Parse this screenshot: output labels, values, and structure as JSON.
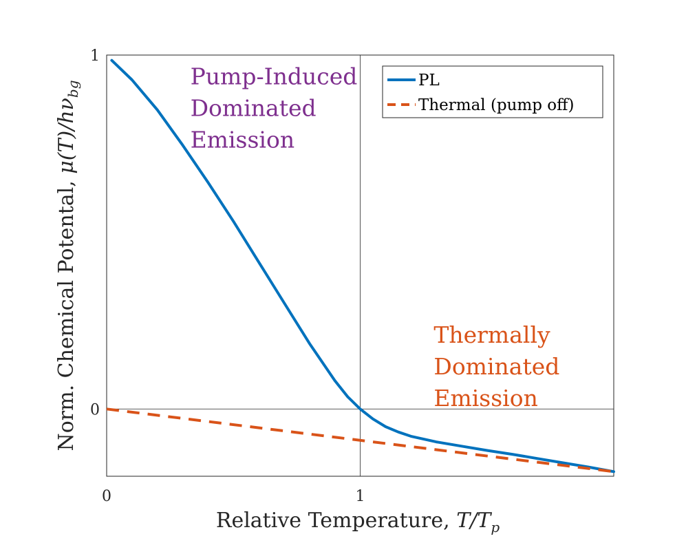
{
  "chart_data": {
    "type": "line",
    "title": "",
    "xlabel": "Relative Temperature, ",
    "xlabel_math": "T/T",
    "xlabel_sub": "p",
    "ylabel": "Norm. Chemical Potental, ",
    "ylabel_math": "μ(T)/hν",
    "ylabel_sub": "bg",
    "xlim": [
      0,
      2
    ],
    "ylim": [
      -0.19,
      1
    ],
    "x_ticks": [
      0,
      1
    ],
    "x_tick_labels": [
      "0",
      "1"
    ],
    "y_ticks": [
      0,
      1
    ],
    "y_tick_labels": [
      "0",
      "1"
    ],
    "reference_lines": {
      "x": 1,
      "y": 0
    },
    "legend_position": "top-right",
    "series": [
      {
        "name": "PL",
        "color": "#0072BD",
        "style": "solid",
        "x": [
          0.02,
          0.1,
          0.2,
          0.3,
          0.4,
          0.5,
          0.6,
          0.7,
          0.8,
          0.9,
          0.95,
          1.0,
          1.05,
          1.1,
          1.15,
          1.2,
          1.3,
          1.4,
          1.5,
          1.6,
          1.7,
          1.8,
          1.9,
          2.0
        ],
        "y": [
          0.985,
          0.93,
          0.845,
          0.745,
          0.64,
          0.53,
          0.415,
          0.3,
          0.185,
          0.08,
          0.035,
          0.0,
          -0.028,
          -0.05,
          -0.065,
          -0.077,
          -0.093,
          -0.105,
          -0.117,
          -0.128,
          -0.14,
          -0.152,
          -0.164,
          -0.177
        ]
      },
      {
        "name": "Thermal (pump off)",
        "color": "#D95319",
        "style": "dashed",
        "x": [
          0,
          2
        ],
        "y": [
          0,
          -0.177
        ]
      }
    ],
    "annotations": [
      {
        "lines": [
          "Pump-Induced",
          "Dominated",
          "Emission"
        ],
        "color": "#7E2F8E",
        "anchor_x": 0.33,
        "anchor_y": 0.97
      },
      {
        "lines": [
          "Thermally",
          "Dominated",
          "Emission"
        ],
        "color": "#D95319",
        "anchor_x": 1.29,
        "anchor_y": 0.24
      }
    ]
  }
}
